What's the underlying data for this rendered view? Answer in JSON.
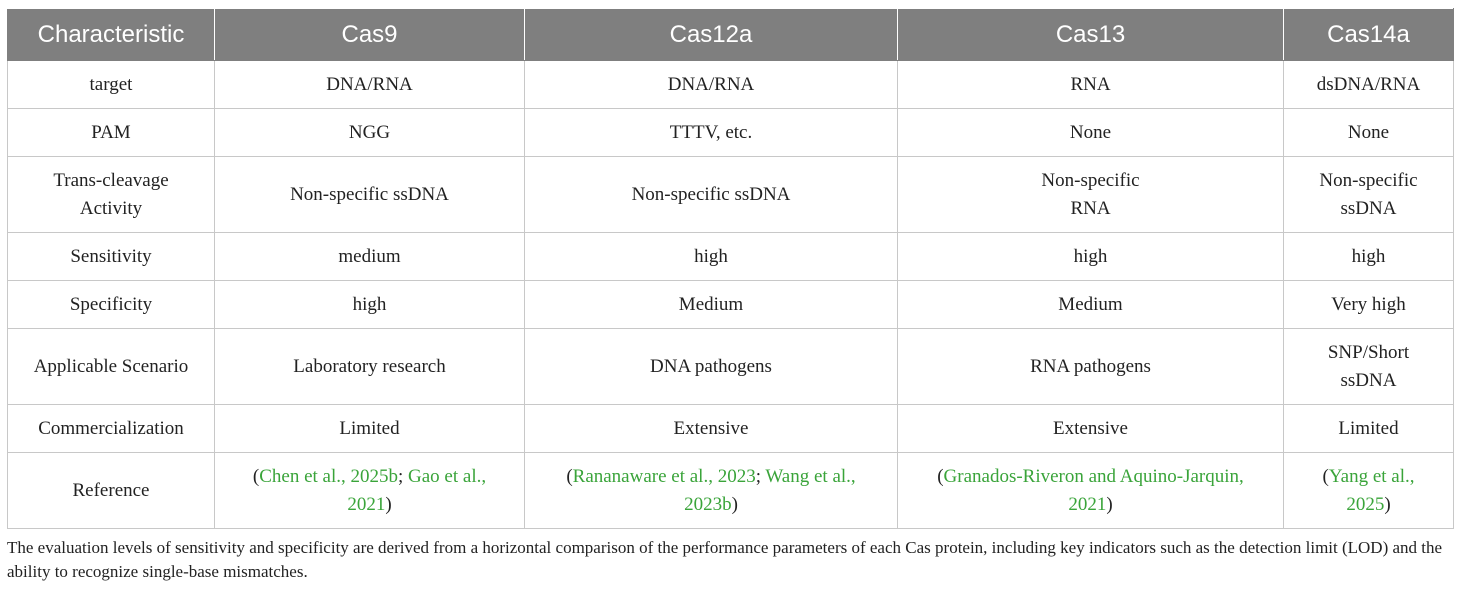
{
  "header": {
    "characteristic": "Characteristic",
    "cas9": "Cas9",
    "cas12a": "Cas12a",
    "cas13": "Cas13",
    "cas14a": "Cas14a"
  },
  "rows": {
    "target": {
      "label": "target",
      "cas9": "DNA/RNA",
      "cas12a": "DNA/RNA",
      "cas13": "RNA",
      "cas14a": "dsDNA/RNA"
    },
    "pam": {
      "label": "PAM",
      "cas9": "NGG",
      "cas12a": "TTTV, etc.",
      "cas13": "None",
      "cas14a": "None"
    },
    "trans": {
      "label_1": "Trans-cleavage",
      "label_2": "Activity",
      "cas9": "Non-specific ssDNA",
      "cas12a": "Non-specific ssDNA",
      "cas13_1": "Non-specific",
      "cas13_2": "RNA",
      "cas14a_1": "Non-specific",
      "cas14a_2": "ssDNA"
    },
    "sensitivity": {
      "label": "Sensitivity",
      "cas9": "medium",
      "cas12a": "high",
      "cas13": "high",
      "cas14a": "high"
    },
    "specificity": {
      "label": "Specificity",
      "cas9": "high",
      "cas12a": "Medium",
      "cas13": "Medium",
      "cas14a": "Very high"
    },
    "scenario": {
      "label": "Applicable Scenario",
      "cas9": "Laboratory research",
      "cas12a": "DNA pathogens",
      "cas13": "RNA pathogens",
      "cas14a_1": "SNP/Short",
      "cas14a_2": "ssDNA"
    },
    "commercialization": {
      "label": "Commercialization",
      "cas9": "Limited",
      "cas12a": "Extensive",
      "cas13": "Extensive",
      "cas14a": "Limited"
    },
    "reference": {
      "label": "Reference",
      "open_paren": "(",
      "close_paren": ")",
      "separator": "; ",
      "cas9_a": "Chen et al., 2025b",
      "cas9_b1": "Gao et al.,",
      "cas9_b2": "2021",
      "cas12a_a": "Rananaware et al., 2023",
      "cas12a_b1": "Wang et al.,",
      "cas12a_b2": "2023b",
      "cas13_1": "Granados-Riveron and Aquino-Jarquin,",
      "cas13_2": "2021",
      "cas14a_1": "Yang et al.,",
      "cas14a_2": "2025"
    }
  },
  "footnote": "The evaluation levels of sensitivity and specificity are derived from a horizontal comparison of the performance parameters of each Cas protein, including key indicators such as the detection limit (LOD) and the ability to recognize single-base mismatches.",
  "colors": {
    "header_bg": "#7f7f7f",
    "header_text": "#ffffff",
    "link": "#3aa43a",
    "border": "#c8c8c8"
  }
}
